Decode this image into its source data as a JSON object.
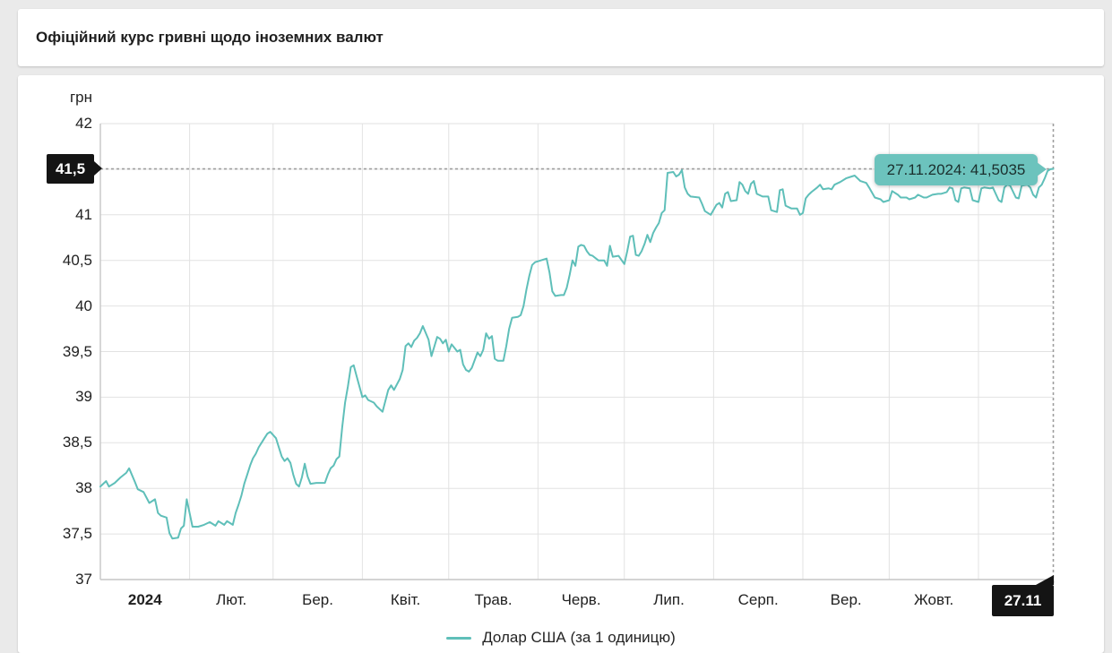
{
  "header": {
    "title": "Офіційний курс гривні щодо іноземних валют"
  },
  "chart": {
    "unit_label": "грн",
    "y_flag_label": "41,5",
    "x_flag_label": "27.11",
    "tooltip_text": "27.11.2024: 41,5035",
    "colors": {
      "line": "#5fbfb9",
      "tooltip_bg": "#6cc3bd",
      "grid": "#e2e2e2",
      "axis": "#c6c6c6",
      "crosshair": "#9e9e9e",
      "flag_bg": "#141414"
    }
  },
  "chart_data": {
    "type": "line",
    "title": "Офіційний курс гривні щодо іноземних валют",
    "unit": "грн",
    "ylim": [
      37,
      42
    ],
    "grid": true,
    "y_ticks": [
      "42",
      "41",
      "40,5",
      "40",
      "39,5",
      "39",
      "38,5",
      "38",
      "37,5",
      "37"
    ],
    "y_tick_values": [
      42,
      41,
      40.5,
      40,
      39.5,
      39,
      38.5,
      38,
      37.5,
      37
    ],
    "x_ticks": [
      "2024",
      "Лют.",
      "Бер.",
      "Квіт.",
      "Трав.",
      "Черв.",
      "Лип.",
      "Серп.",
      "Вер.",
      "Жовт."
    ],
    "month_start_days": [
      0,
      31,
      60,
      91,
      121,
      152,
      182,
      213,
      244,
      274,
      305
    ],
    "total_days": 331,
    "legend_position": "bottom",
    "highlight": {
      "date": "27.11.2024",
      "value": 41.5035,
      "label": "27.11.2024: 41,5035"
    },
    "series": [
      {
        "name": "Долар США (за 1 одиницю)",
        "color": "#5fbfb9",
        "points": [
          [
            0,
            38.02
          ],
          [
            1,
            38.05
          ],
          [
            2,
            38.08
          ],
          [
            3,
            38.02
          ],
          [
            5,
            38.06
          ],
          [
            7,
            38.12
          ],
          [
            9,
            38.17
          ],
          [
            10,
            38.22
          ],
          [
            12,
            38.07
          ],
          [
            13,
            37.99
          ],
          [
            15,
            37.96
          ],
          [
            16,
            37.9
          ],
          [
            17,
            37.84
          ],
          [
            19,
            37.88
          ],
          [
            20,
            37.73
          ],
          [
            21,
            37.7
          ],
          [
            23,
            37.68
          ],
          [
            24,
            37.51
          ],
          [
            25,
            37.45
          ],
          [
            27,
            37.46
          ],
          [
            28,
            37.56
          ],
          [
            29,
            37.59
          ],
          [
            30,
            37.88
          ],
          [
            32,
            37.58
          ],
          [
            34,
            37.58
          ],
          [
            36,
            37.6
          ],
          [
            38,
            37.63
          ],
          [
            40,
            37.59
          ],
          [
            41,
            37.64
          ],
          [
            43,
            37.6
          ],
          [
            44,
            37.64
          ],
          [
            46,
            37.6
          ],
          [
            47,
            37.73
          ],
          [
            48,
            37.82
          ],
          [
            49,
            37.92
          ],
          [
            50,
            38.05
          ],
          [
            51,
            38.15
          ],
          [
            52,
            38.25
          ],
          [
            53,
            38.33
          ],
          [
            54,
            38.38
          ],
          [
            55,
            38.45
          ],
          [
            56,
            38.5
          ],
          [
            57,
            38.55
          ],
          [
            58,
            38.6
          ],
          [
            59,
            38.62
          ],
          [
            61,
            38.55
          ],
          [
            62,
            38.45
          ],
          [
            63,
            38.35
          ],
          [
            64,
            38.3
          ],
          [
            65,
            38.33
          ],
          [
            66,
            38.28
          ],
          [
            67,
            38.15
          ],
          [
            68,
            38.05
          ],
          [
            69,
            38.02
          ],
          [
            70,
            38.12
          ],
          [
            71,
            38.27
          ],
          [
            72,
            38.13
          ],
          [
            73,
            38.05
          ],
          [
            75,
            38.06
          ],
          [
            78,
            38.06
          ],
          [
            79,
            38.15
          ],
          [
            80,
            38.22
          ],
          [
            81,
            38.25
          ],
          [
            82,
            38.32
          ],
          [
            83,
            38.35
          ],
          [
            84,
            38.67
          ],
          [
            85,
            38.94
          ],
          [
            86,
            39.12
          ],
          [
            87,
            39.33
          ],
          [
            88,
            39.35
          ],
          [
            89,
            39.23
          ],
          [
            91,
            39.0
          ],
          [
            92,
            39.02
          ],
          [
            93,
            38.97
          ],
          [
            95,
            38.94
          ],
          [
            96,
            38.9
          ],
          [
            98,
            38.84
          ],
          [
            100,
            39.08
          ],
          [
            101,
            39.13
          ],
          [
            102,
            39.08
          ],
          [
            104,
            39.2
          ],
          [
            105,
            39.3
          ],
          [
            106,
            39.56
          ],
          [
            107,
            39.59
          ],
          [
            108,
            39.55
          ],
          [
            109,
            39.62
          ],
          [
            110,
            39.65
          ],
          [
            111,
            39.7
          ],
          [
            112,
            39.78
          ],
          [
            114,
            39.63
          ],
          [
            115,
            39.45
          ],
          [
            117,
            39.66
          ],
          [
            118,
            39.64
          ],
          [
            119,
            39.59
          ],
          [
            120,
            39.63
          ],
          [
            121,
            39.5
          ],
          [
            122,
            39.58
          ],
          [
            123,
            39.54
          ],
          [
            124,
            39.5
          ],
          [
            125,
            39.52
          ],
          [
            126,
            39.36
          ],
          [
            127,
            39.3
          ],
          [
            128,
            39.28
          ],
          [
            129,
            39.32
          ],
          [
            131,
            39.49
          ],
          [
            132,
            39.45
          ],
          [
            133,
            39.52
          ],
          [
            134,
            39.7
          ],
          [
            135,
            39.64
          ],
          [
            136,
            39.67
          ],
          [
            137,
            39.42
          ],
          [
            138,
            39.4
          ],
          [
            140,
            39.4
          ],
          [
            141,
            39.56
          ],
          [
            142,
            39.75
          ],
          [
            143,
            39.87
          ],
          [
            145,
            39.88
          ],
          [
            146,
            39.9
          ],
          [
            147,
            40.0
          ],
          [
            148,
            40.18
          ],
          [
            149,
            40.33
          ],
          [
            150,
            40.45
          ],
          [
            151,
            40.48
          ],
          [
            153,
            40.5
          ],
          [
            155,
            40.52
          ],
          [
            156,
            40.37
          ],
          [
            157,
            40.16
          ],
          [
            158,
            40.11
          ],
          [
            160,
            40.12
          ],
          [
            161,
            40.12
          ],
          [
            162,
            40.2
          ],
          [
            163,
            40.34
          ],
          [
            164,
            40.5
          ],
          [
            165,
            40.44
          ],
          [
            166,
            40.65
          ],
          [
            167,
            40.67
          ],
          [
            168,
            40.66
          ],
          [
            169,
            40.6
          ],
          [
            170,
            40.56
          ],
          [
            171,
            40.55
          ],
          [
            173,
            40.5
          ],
          [
            175,
            40.5
          ],
          [
            176,
            40.44
          ],
          [
            177,
            40.66
          ],
          [
            178,
            40.54
          ],
          [
            180,
            40.55
          ],
          [
            182,
            40.46
          ],
          [
            183,
            40.6
          ],
          [
            184,
            40.76
          ],
          [
            185,
            40.77
          ],
          [
            186,
            40.56
          ],
          [
            187,
            40.55
          ],
          [
            188,
            40.6
          ],
          [
            189,
            40.68
          ],
          [
            190,
            40.78
          ],
          [
            191,
            40.7
          ],
          [
            192,
            40.8
          ],
          [
            193,
            40.86
          ],
          [
            194,
            40.91
          ],
          [
            195,
            41.02
          ],
          [
            196,
            41.05
          ],
          [
            197,
            41.46
          ],
          [
            199,
            41.47
          ],
          [
            200,
            41.42
          ],
          [
            201,
            41.44
          ],
          [
            202,
            41.49
          ],
          [
            203,
            41.3
          ],
          [
            204,
            41.23
          ],
          [
            205,
            41.2
          ],
          [
            208,
            41.19
          ],
          [
            209,
            41.12
          ],
          [
            210,
            41.04
          ],
          [
            212,
            41.0
          ],
          [
            214,
            41.11
          ],
          [
            215,
            41.13
          ],
          [
            216,
            41.08
          ],
          [
            217,
            41.23
          ],
          [
            218,
            41.25
          ],
          [
            219,
            41.15
          ],
          [
            221,
            41.16
          ],
          [
            222,
            41.36
          ],
          [
            223,
            41.33
          ],
          [
            224,
            41.26
          ],
          [
            225,
            41.23
          ],
          [
            226,
            41.34
          ],
          [
            227,
            41.37
          ],
          [
            228,
            41.23
          ],
          [
            230,
            41.2
          ],
          [
            232,
            41.2
          ],
          [
            233,
            41.05
          ],
          [
            235,
            41.03
          ],
          [
            236,
            41.27
          ],
          [
            237,
            41.28
          ],
          [
            238,
            41.1
          ],
          [
            240,
            41.07
          ],
          [
            242,
            41.07
          ],
          [
            243,
            41.0
          ],
          [
            244,
            41.02
          ],
          [
            245,
            41.18
          ],
          [
            246,
            41.22
          ],
          [
            247,
            41.25
          ],
          [
            249,
            41.3
          ],
          [
            250,
            41.33
          ],
          [
            251,
            41.28
          ],
          [
            253,
            41.29
          ],
          [
            254,
            41.28
          ],
          [
            255,
            41.33
          ],
          [
            257,
            41.36
          ],
          [
            259,
            41.4
          ],
          [
            261,
            41.42
          ],
          [
            262,
            41.43
          ],
          [
            264,
            41.37
          ],
          [
            266,
            41.35
          ],
          [
            267,
            41.3
          ],
          [
            269,
            41.19
          ],
          [
            271,
            41.17
          ],
          [
            272,
            41.14
          ],
          [
            274,
            41.16
          ],
          [
            275,
            41.26
          ],
          [
            277,
            41.22
          ],
          [
            278,
            41.19
          ],
          [
            280,
            41.19
          ],
          [
            281,
            41.17
          ],
          [
            283,
            41.19
          ],
          [
            284,
            41.22
          ],
          [
            286,
            41.19
          ],
          [
            287,
            41.19
          ],
          [
            289,
            41.22
          ],
          [
            291,
            41.23
          ],
          [
            292,
            41.23
          ],
          [
            294,
            41.25
          ],
          [
            295,
            41.3
          ],
          [
            296,
            41.29
          ],
          [
            297,
            41.16
          ],
          [
            298,
            41.14
          ],
          [
            299,
            41.29
          ],
          [
            300,
            41.3
          ],
          [
            302,
            41.29
          ],
          [
            303,
            41.16
          ],
          [
            305,
            41.14
          ],
          [
            306,
            41.29
          ],
          [
            307,
            41.3
          ],
          [
            309,
            41.29
          ],
          [
            310,
            41.3
          ],
          [
            312,
            41.16
          ],
          [
            313,
            41.14
          ],
          [
            314,
            41.3
          ],
          [
            315,
            41.33
          ],
          [
            316,
            41.32
          ],
          [
            318,
            41.19
          ],
          [
            319,
            41.18
          ],
          [
            320,
            41.32
          ],
          [
            322,
            41.33
          ],
          [
            323,
            41.3
          ],
          [
            324,
            41.22
          ],
          [
            325,
            41.19
          ],
          [
            326,
            41.3
          ],
          [
            327,
            41.33
          ],
          [
            328,
            41.4
          ],
          [
            329,
            41.48
          ],
          [
            330,
            41.5
          ],
          [
            331,
            41.5035
          ]
        ]
      }
    ]
  }
}
